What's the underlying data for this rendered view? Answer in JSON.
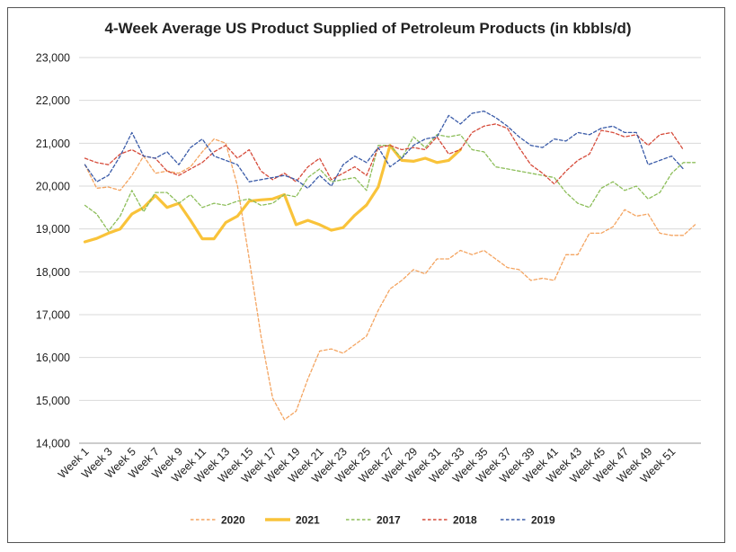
{
  "chart_data": {
    "type": "line",
    "title": "4-Week Average US Product Supplied of Petroleum Products (in kbbls/d)",
    "xlabel": "",
    "ylabel": "",
    "ylim": [
      14000,
      23000
    ],
    "y_ticks": [
      "14,000",
      "15,000",
      "16,000",
      "17,000",
      "18,000",
      "19,000",
      "20,000",
      "21,000",
      "22,000",
      "23,000"
    ],
    "x_tick_labels": [
      "Week 1",
      "Week 3",
      "Week 5",
      "Week 7",
      "Week 9",
      "Week 11",
      "Week 13",
      "Week 15",
      "Week 17",
      "Week 19",
      "Week 21",
      "Week 23",
      "Week 25",
      "Week 27",
      "Week 29",
      "Week 31",
      "Week 33",
      "Week 35",
      "Week 37",
      "Week 39",
      "Week 41",
      "Week 43",
      "Week 45",
      "Week 47",
      "Week 49",
      "Week 51"
    ],
    "grid": "horizontal",
    "legend_position": "bottom",
    "series": [
      {
        "name": "2020",
        "color": "#F4A460",
        "style": "dashed",
        "width": 1.3,
        "values": [
          20500,
          19950,
          19980,
          19900,
          20250,
          20700,
          20300,
          20350,
          20300,
          20450,
          20800,
          21100,
          21000,
          20000,
          18300,
          16500,
          15050,
          14550,
          14750,
          15500,
          16150,
          16200,
          16100,
          16300,
          16500,
          17100,
          17600,
          17800,
          18050,
          17950,
          18300,
          18300,
          18500,
          18400,
          18500,
          18300,
          18100,
          18050,
          17800,
          17850,
          17800,
          18400,
          18400,
          18900,
          18900,
          19050,
          19450,
          19300,
          19350,
          18900,
          18850,
          18850,
          19100
        ]
      },
      {
        "name": "2021",
        "color": "#F9C33A",
        "style": "solid",
        "width": 3.2,
        "values": [
          18700,
          18780,
          18900,
          19000,
          19350,
          19500,
          19780,
          19500,
          19600,
          19200,
          18770,
          18770,
          19150,
          19300,
          19650,
          19680,
          19700,
          19800,
          19100,
          19200,
          19100,
          18970,
          19030,
          19320,
          19560,
          19980,
          20950,
          20600,
          20580,
          20650,
          20550,
          20600,
          20850
        ]
      },
      {
        "name": "2017",
        "color": "#8DBE5A",
        "style": "dashed",
        "width": 1.3,
        "values": [
          19550,
          19350,
          18950,
          19300,
          19900,
          19400,
          19850,
          19850,
          19600,
          19800,
          19500,
          19600,
          19550,
          19650,
          19700,
          19550,
          19600,
          19800,
          19750,
          20200,
          20400,
          20100,
          20150,
          20200,
          19900,
          20950,
          20950,
          20650,
          21150,
          20900,
          21200,
          21150,
          21200,
          20850,
          20800,
          20450,
          20400,
          20350,
          20300,
          20250,
          20200,
          19850,
          19600,
          19500,
          19950,
          20100,
          19900,
          20000,
          19700,
          19850,
          20300,
          20550,
          20550
        ]
      },
      {
        "name": "2018",
        "color": "#D64B3A",
        "style": "dashed",
        "width": 1.3,
        "values": [
          20650,
          20550,
          20500,
          20750,
          20850,
          20700,
          20650,
          20350,
          20250,
          20400,
          20550,
          20800,
          20950,
          20650,
          20850,
          20350,
          20150,
          20300,
          20100,
          20450,
          20650,
          20150,
          20300,
          20450,
          20250,
          20900,
          20950,
          20850,
          20900,
          20850,
          21150,
          20750,
          20850,
          21250,
          21400,
          21450,
          21350,
          20900,
          20500,
          20300,
          20050,
          20350,
          20600,
          20750,
          21300,
          21250,
          21150,
          21200,
          20950,
          21200,
          21250,
          20850
        ]
      },
      {
        "name": "2019",
        "color": "#3A5BA8",
        "style": "dashed",
        "width": 1.3,
        "values": [
          20500,
          20100,
          20250,
          20700,
          21250,
          20700,
          20650,
          20800,
          20500,
          20900,
          21100,
          20700,
          20600,
          20500,
          20100,
          20150,
          20200,
          20250,
          20150,
          19950,
          20250,
          20000,
          20500,
          20700,
          20550,
          20900,
          20450,
          20650,
          20950,
          21100,
          21150,
          21650,
          21450,
          21700,
          21750,
          21600,
          21400,
          21150,
          20950,
          20900,
          21100,
          21050,
          21250,
          21200,
          21350,
          21400,
          21250,
          21250,
          20500,
          20600,
          20700,
          20400
        ]
      }
    ]
  }
}
